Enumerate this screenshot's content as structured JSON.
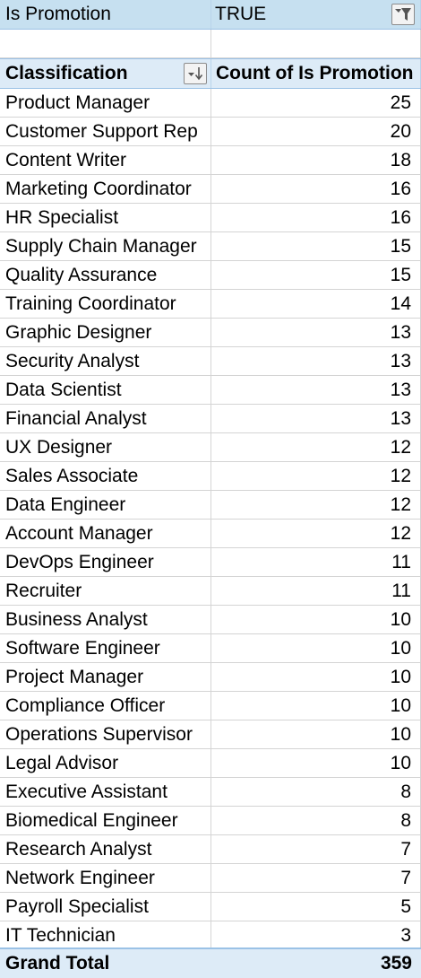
{
  "filter": {
    "field": "Is Promotion",
    "value": "TRUE",
    "filter_icon": "filter-dropdown-icon"
  },
  "header": {
    "row_label": "Classification",
    "value_label": "Count of Is Promotion",
    "sort_icon": "sort-descending-dropdown-icon"
  },
  "rows": [
    {
      "label": "Product Manager",
      "count": "25"
    },
    {
      "label": "Customer Support Rep",
      "count": "20"
    },
    {
      "label": "Content Writer",
      "count": "18"
    },
    {
      "label": "Marketing Coordinator",
      "count": "16"
    },
    {
      "label": "HR Specialist",
      "count": "16"
    },
    {
      "label": "Supply Chain Manager",
      "count": "15"
    },
    {
      "label": "Quality Assurance",
      "count": "15"
    },
    {
      "label": "Training Coordinator",
      "count": "14"
    },
    {
      "label": "Graphic Designer",
      "count": "13"
    },
    {
      "label": "Security Analyst",
      "count": "13"
    },
    {
      "label": "Data Scientist",
      "count": "13"
    },
    {
      "label": "Financial Analyst",
      "count": "13"
    },
    {
      "label": "UX Designer",
      "count": "12"
    },
    {
      "label": "Sales Associate",
      "count": "12"
    },
    {
      "label": "Data Engineer",
      "count": "12"
    },
    {
      "label": "Account Manager",
      "count": "12"
    },
    {
      "label": "DevOps Engineer",
      "count": "11"
    },
    {
      "label": "Recruiter",
      "count": "11"
    },
    {
      "label": "Business Analyst",
      "count": "10"
    },
    {
      "label": "Software Engineer",
      "count": "10"
    },
    {
      "label": "Project Manager",
      "count": "10"
    },
    {
      "label": "Compliance Officer",
      "count": "10"
    },
    {
      "label": "Operations Supervisor",
      "count": "10"
    },
    {
      "label": "Legal Advisor",
      "count": "10"
    },
    {
      "label": "Executive Assistant",
      "count": "8"
    },
    {
      "label": "Biomedical Engineer",
      "count": "8"
    },
    {
      "label": "Research Analyst",
      "count": "7"
    },
    {
      "label": "Network Engineer",
      "count": "7"
    },
    {
      "label": "Payroll Specialist",
      "count": "5"
    },
    {
      "label": "IT Technician",
      "count": "3"
    }
  ],
  "total": {
    "label": "Grand Total",
    "count": "359"
  },
  "colors": {
    "filter_bg": "#c6e0f0",
    "header_bg": "#ddebf7",
    "border": "#9bc2e6",
    "grid": "#d4d4d4"
  }
}
